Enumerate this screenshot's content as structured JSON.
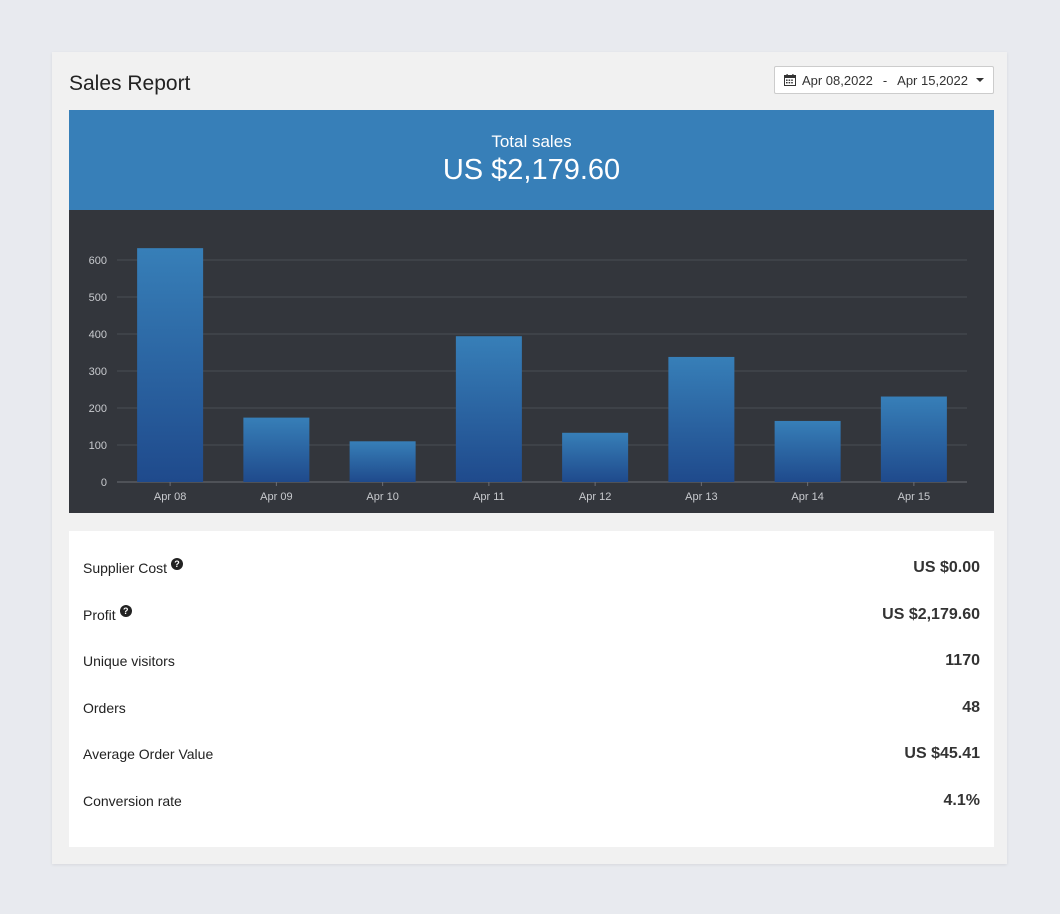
{
  "header": {
    "title": "Sales Report",
    "date_start": "Apr 08,2022",
    "date_separator": "-",
    "date_end": "Apr 15,2022"
  },
  "banner": {
    "label": "Total sales",
    "value": "US $2,179.60",
    "color": "#377fb8"
  },
  "chart_data": {
    "type": "bar",
    "categories": [
      "Apr 08",
      "Apr 09",
      "Apr 10",
      "Apr 11",
      "Apr 12",
      "Apr 13",
      "Apr 14",
      "Apr 15"
    ],
    "values": [
      632,
      174,
      110,
      394,
      133,
      338,
      165,
      231
    ],
    "ylim": [
      0,
      600
    ],
    "yticks": [
      0,
      100,
      200,
      300,
      400,
      500,
      600
    ],
    "grid": true,
    "bar_color_top": "#377fb8",
    "bar_color_bottom": "#1f4a8c",
    "background": "#33363c"
  },
  "stats": [
    {
      "label": "Supplier Cost",
      "value": "US $0.00",
      "help": true
    },
    {
      "label": "Profit",
      "value": "US $2,179.60",
      "help": true
    },
    {
      "label": "Unique visitors",
      "value": "1170",
      "help": false
    },
    {
      "label": "Orders",
      "value": "48",
      "help": false
    },
    {
      "label": "Average Order Value",
      "value": "US $45.41",
      "help": false
    },
    {
      "label": "Conversion rate",
      "value": "4.1%",
      "help": false
    }
  ],
  "icons": {
    "calendar": "calendar-icon",
    "caret": "caret-down-icon",
    "help": "question-circle-icon"
  }
}
